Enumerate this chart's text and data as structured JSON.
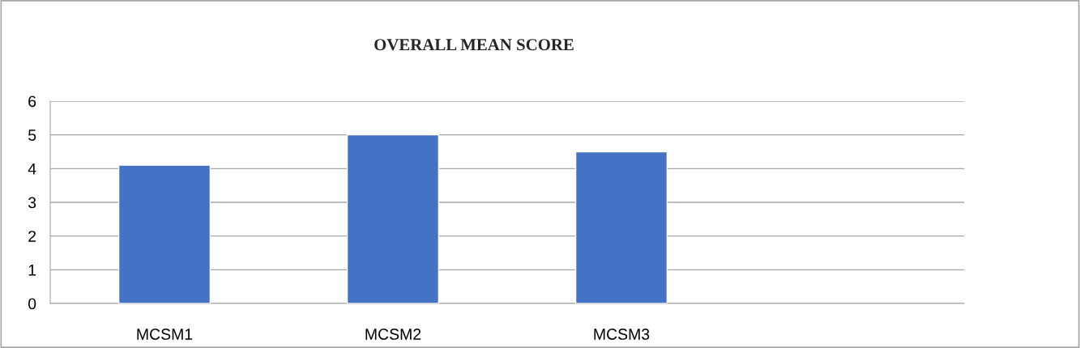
{
  "chart_data": {
    "type": "bar",
    "title": "OVERALL MEAN SCORE",
    "categories": [
      "MCSM1",
      "MCSM2",
      "MCSM3",
      null
    ],
    "values": [
      4.1,
      5.0,
      4.5,
      null
    ],
    "color": "#4472c4",
    "ylim": [
      0,
      6
    ],
    "yticks": [
      0,
      1,
      2,
      3,
      4,
      5,
      6
    ],
    "grid": "y"
  }
}
